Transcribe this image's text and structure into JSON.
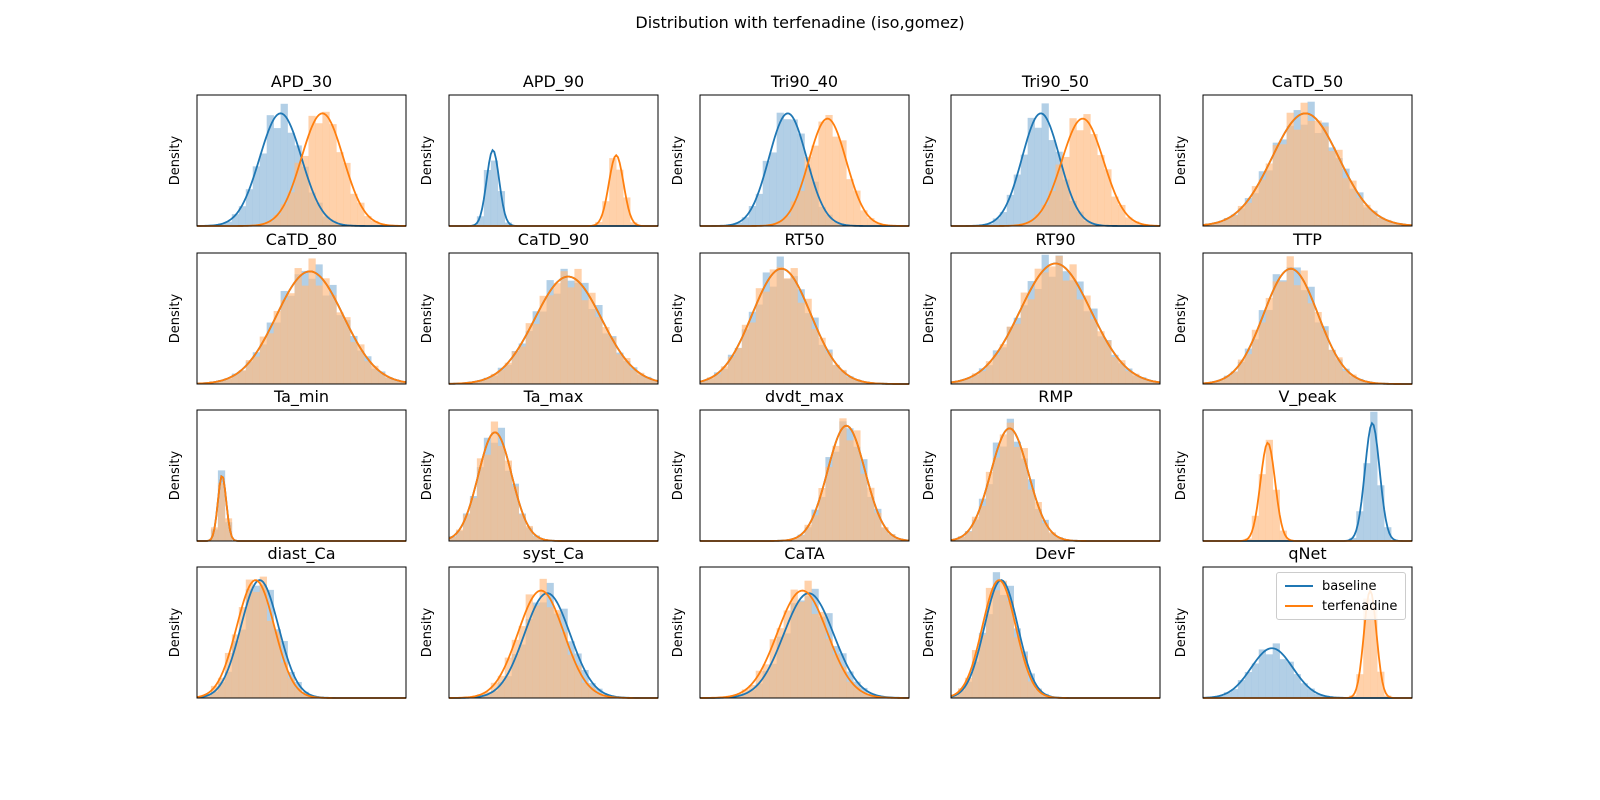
{
  "figure": {
    "title": "Distribution with terfenadine (iso,gomez)"
  },
  "colors": {
    "baseline": "#1f77b4",
    "terfenadine": "#ff7f0e"
  },
  "chart_data": [
    {
      "type": "histogram-kde",
      "title": "APD_30",
      "ylabel": "Density",
      "series": [
        {
          "name": "baseline",
          "center": 0.4,
          "width": 0.1,
          "height": 0.86
        },
        {
          "name": "terfenadine",
          "center": 0.6,
          "width": 0.1,
          "height": 0.86
        }
      ]
    },
    {
      "type": "histogram-kde",
      "title": "APD_90",
      "ylabel": "Density",
      "series": [
        {
          "name": "baseline",
          "center": 0.21,
          "width": 0.03,
          "height": 0.58
        },
        {
          "name": "terfenadine",
          "center": 0.8,
          "width": 0.035,
          "height": 0.54
        }
      ]
    },
    {
      "type": "histogram-kde",
      "title": "Tri90_40",
      "ylabel": "Density",
      "series": [
        {
          "name": "baseline",
          "center": 0.42,
          "width": 0.09,
          "height": 0.86
        },
        {
          "name": "terfenadine",
          "center": 0.61,
          "width": 0.09,
          "height": 0.82
        }
      ]
    },
    {
      "type": "histogram-kde",
      "title": "Tri90_50",
      "ylabel": "Density",
      "series": [
        {
          "name": "baseline",
          "center": 0.43,
          "width": 0.09,
          "height": 0.86
        },
        {
          "name": "terfenadine",
          "center": 0.63,
          "width": 0.1,
          "height": 0.82
        }
      ]
    },
    {
      "type": "histogram-kde",
      "title": "CaTD_50",
      "ylabel": "Density",
      "series": [
        {
          "name": "baseline",
          "center": 0.49,
          "width": 0.16,
          "height": 0.86
        },
        {
          "name": "terfenadine",
          "center": 0.49,
          "width": 0.16,
          "height": 0.86
        }
      ]
    },
    {
      "type": "histogram-kde",
      "title": "CaTD_80",
      "ylabel": "Density",
      "series": [
        {
          "name": "baseline",
          "center": 0.54,
          "width": 0.16,
          "height": 0.86
        },
        {
          "name": "terfenadine",
          "center": 0.54,
          "width": 0.16,
          "height": 0.86
        }
      ]
    },
    {
      "type": "histogram-kde",
      "title": "CaTD_90",
      "ylabel": "Density",
      "series": [
        {
          "name": "baseline",
          "center": 0.57,
          "width": 0.16,
          "height": 0.82
        },
        {
          "name": "terfenadine",
          "center": 0.57,
          "width": 0.16,
          "height": 0.82
        }
      ]
    },
    {
      "type": "histogram-kde",
      "title": "RT50",
      "ylabel": "Density",
      "series": [
        {
          "name": "baseline",
          "center": 0.39,
          "width": 0.14,
          "height": 0.88
        },
        {
          "name": "terfenadine",
          "center": 0.39,
          "width": 0.14,
          "height": 0.88
        }
      ]
    },
    {
      "type": "histogram-kde",
      "title": "RT90",
      "ylabel": "Density",
      "series": [
        {
          "name": "baseline",
          "center": 0.5,
          "width": 0.17,
          "height": 0.92
        },
        {
          "name": "terfenadine",
          "center": 0.5,
          "width": 0.17,
          "height": 0.92
        }
      ]
    },
    {
      "type": "histogram-kde",
      "title": "TTP",
      "ylabel": "Density",
      "series": [
        {
          "name": "baseline",
          "center": 0.42,
          "width": 0.13,
          "height": 0.88
        },
        {
          "name": "terfenadine",
          "center": 0.42,
          "width": 0.13,
          "height": 0.88
        }
      ]
    },
    {
      "type": "histogram-kde",
      "title": "Ta_min",
      "ylabel": "Density",
      "series": [
        {
          "name": "baseline",
          "center": 0.12,
          "width": 0.02,
          "height": 0.5
        },
        {
          "name": "terfenadine",
          "center": 0.12,
          "width": 0.02,
          "height": 0.5
        }
      ]
    },
    {
      "type": "histogram-kde",
      "title": "Ta_max",
      "ylabel": "Density",
      "series": [
        {
          "name": "baseline",
          "center": 0.22,
          "width": 0.08,
          "height": 0.83
        },
        {
          "name": "terfenadine",
          "center": 0.22,
          "width": 0.08,
          "height": 0.83
        }
      ]
    },
    {
      "type": "histogram-kde",
      "title": "dvdt_max",
      "ylabel": "Density",
      "series": [
        {
          "name": "baseline",
          "center": 0.7,
          "width": 0.09,
          "height": 0.88
        },
        {
          "name": "terfenadine",
          "center": 0.7,
          "width": 0.09,
          "height": 0.88
        }
      ]
    },
    {
      "type": "histogram-kde",
      "title": "RMP",
      "ylabel": "Density",
      "series": [
        {
          "name": "baseline",
          "center": 0.28,
          "width": 0.09,
          "height": 0.86
        },
        {
          "name": "terfenadine",
          "center": 0.28,
          "width": 0.09,
          "height": 0.86
        }
      ]
    },
    {
      "type": "histogram-kde",
      "title": "V_peak",
      "ylabel": "Density",
      "series": [
        {
          "name": "baseline",
          "center": 0.81,
          "width": 0.035,
          "height": 0.9
        },
        {
          "name": "terfenadine",
          "center": 0.31,
          "width": 0.035,
          "height": 0.75
        }
      ]
    },
    {
      "type": "histogram-kde",
      "title": "diast_Ca",
      "ylabel": "Density",
      "series": [
        {
          "name": "baseline",
          "center": 0.3,
          "width": 0.09,
          "height": 0.9
        },
        {
          "name": "terfenadine",
          "center": 0.28,
          "width": 0.09,
          "height": 0.9
        }
      ]
    },
    {
      "type": "histogram-kde",
      "title": "syst_Ca",
      "ylabel": "Density",
      "series": [
        {
          "name": "baseline",
          "center": 0.47,
          "width": 0.11,
          "height": 0.8
        },
        {
          "name": "terfenadine",
          "center": 0.44,
          "width": 0.11,
          "height": 0.82
        }
      ]
    },
    {
      "type": "histogram-kde",
      "title": "CaTA",
      "ylabel": "Density",
      "series": [
        {
          "name": "baseline",
          "center": 0.52,
          "width": 0.12,
          "height": 0.8
        },
        {
          "name": "terfenadine",
          "center": 0.49,
          "width": 0.12,
          "height": 0.82
        }
      ]
    },
    {
      "type": "histogram-kde",
      "title": "DevF",
      "ylabel": "Density",
      "series": [
        {
          "name": "baseline",
          "center": 0.24,
          "width": 0.08,
          "height": 0.9
        },
        {
          "name": "terfenadine",
          "center": 0.23,
          "width": 0.08,
          "height": 0.9
        }
      ]
    },
    {
      "type": "histogram-kde",
      "title": "qNet",
      "ylabel": "Density",
      "series": [
        {
          "name": "baseline",
          "center": 0.33,
          "width": 0.1,
          "height": 0.38
        },
        {
          "name": "terfenadine",
          "center": 0.8,
          "width": 0.03,
          "height": 0.82
        }
      ]
    }
  ],
  "legend": {
    "position": "upper-right",
    "entries": [
      "baseline",
      "terfenadine"
    ]
  }
}
